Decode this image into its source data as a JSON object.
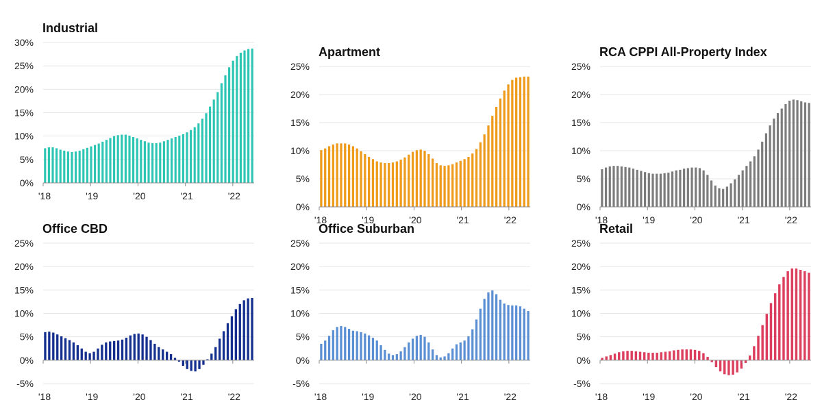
{
  "chart_data": [
    {
      "type": "bar",
      "title": "Industrial",
      "color": "#2cc5b4",
      "ylim": [
        0,
        30
      ],
      "yticks": [
        0,
        5,
        10,
        15,
        20,
        25,
        30
      ],
      "ytick_labels": [
        "0%",
        "5%",
        "10%",
        "15%",
        "20%",
        "25%",
        "30%"
      ],
      "xtick_labels": [
        "'18",
        "'19",
        "'20",
        "'21",
        "'22"
      ],
      "xlabel": "",
      "ylabel": "",
      "values": [
        7.4,
        7.6,
        7.6,
        7.4,
        7.1,
        6.9,
        6.7,
        6.6,
        6.7,
        6.9,
        7.2,
        7.5,
        7.8,
        8.1,
        8.4,
        8.8,
        9.2,
        9.6,
        10.0,
        10.2,
        10.3,
        10.3,
        10.1,
        9.8,
        9.5,
        9.2,
        8.9,
        8.6,
        8.5,
        8.5,
        8.6,
        8.9,
        9.2,
        9.5,
        9.8,
        10.1,
        10.4,
        10.8,
        11.3,
        11.9,
        12.7,
        13.7,
        14.9,
        16.3,
        17.8,
        19.4,
        21.3,
        23.0,
        24.7,
        26.1,
        27.1,
        27.8,
        28.3,
        28.6,
        28.7
      ]
    },
    {
      "type": "bar",
      "title": "Apartment",
      "color": "#ee9a1a",
      "ylim": [
        0,
        25
      ],
      "yticks": [
        0,
        5,
        10,
        15,
        20,
        25
      ],
      "ytick_labels": [
        "0%",
        "5%",
        "10%",
        "15%",
        "20%",
        "25%"
      ],
      "xtick_labels": [
        "'18",
        "'19",
        "'20",
        "'21",
        "'22"
      ],
      "xlabel": "",
      "ylabel": "",
      "values": [
        10.1,
        10.4,
        10.8,
        11.1,
        11.3,
        11.3,
        11.3,
        11.1,
        10.8,
        10.4,
        9.9,
        9.4,
        8.9,
        8.5,
        8.1,
        7.9,
        7.8,
        7.8,
        7.9,
        8.1,
        8.4,
        8.8,
        9.3,
        9.8,
        10.1,
        10.2,
        10.0,
        9.4,
        8.6,
        7.8,
        7.4,
        7.3,
        7.4,
        7.6,
        7.9,
        8.2,
        8.5,
        8.9,
        9.5,
        10.3,
        11.5,
        12.9,
        14.5,
        16.2,
        17.8,
        19.3,
        20.7,
        21.8,
        22.6,
        23.0,
        23.1,
        23.2,
        23.2
      ]
    },
    {
      "type": "bar",
      "title": "RCA CPPI All-Property Index",
      "color": "#7b7b7b",
      "ylim": [
        0,
        25
      ],
      "yticks": [
        0,
        5,
        10,
        15,
        20,
        25
      ],
      "ytick_labels": [
        "0%",
        "5%",
        "10%",
        "15%",
        "20%",
        "25%"
      ],
      "xtick_labels": [
        "'18",
        "'19",
        "'20",
        "'21",
        "'22"
      ],
      "xlabel": "",
      "ylabel": "",
      "values": [
        6.7,
        7.0,
        7.2,
        7.3,
        7.3,
        7.2,
        7.1,
        7.0,
        6.8,
        6.6,
        6.4,
        6.2,
        6.0,
        5.9,
        5.9,
        5.9,
        6.0,
        6.1,
        6.3,
        6.5,
        6.6,
        6.8,
        6.9,
        7.0,
        7.0,
        6.9,
        6.5,
        5.7,
        4.7,
        3.8,
        3.3,
        3.2,
        3.6,
        4.2,
        4.9,
        5.7,
        6.5,
        7.3,
        8.1,
        9.0,
        10.2,
        11.6,
        13.1,
        14.5,
        15.7,
        16.7,
        17.5,
        18.3,
        18.9,
        19.1,
        19.0,
        18.8,
        18.6,
        18.5
      ]
    },
    {
      "type": "bar",
      "title": "Office CBD",
      "color": "#142f8e",
      "ylim": [
        -5,
        25
      ],
      "yticks": [
        -5,
        0,
        5,
        10,
        15,
        20,
        25
      ],
      "ytick_labels": [
        "-5%",
        "0%",
        "5%",
        "10%",
        "15%",
        "20%",
        "25%"
      ],
      "xtick_labels": [
        "'18",
        "'19",
        "'20",
        "'21",
        "'22"
      ],
      "xlabel": "",
      "ylabel": "",
      "values": [
        6.0,
        6.1,
        5.9,
        5.5,
        5.1,
        4.7,
        4.3,
        3.8,
        3.2,
        2.5,
        1.8,
        1.5,
        1.8,
        2.5,
        3.3,
        3.8,
        4.0,
        4.1,
        4.2,
        4.4,
        4.8,
        5.3,
        5.6,
        5.7,
        5.5,
        5.0,
        4.3,
        3.5,
        2.8,
        2.3,
        1.8,
        1.3,
        0.5,
        -0.3,
        -1.2,
        -1.9,
        -2.3,
        -2.4,
        -1.9,
        -1.0,
        0.2,
        1.4,
        2.8,
        4.6,
        6.2,
        7.9,
        9.4,
        10.9,
        12.0,
        12.8,
        13.2,
        13.3
      ]
    },
    {
      "type": "bar",
      "title": "Office Suburban",
      "color": "#5b8fd4",
      "ylim": [
        -5,
        25
      ],
      "yticks": [
        -5,
        0,
        5,
        10,
        15,
        20,
        25
      ],
      "ytick_labels": [
        "-5%",
        "0%",
        "5%",
        "10%",
        "15%",
        "20%",
        "25%"
      ],
      "xtick_labels": [
        "'18",
        "'19",
        "'20",
        "'21",
        "'22"
      ],
      "xlabel": "",
      "ylabel": "",
      "values": [
        3.5,
        4.2,
        5.2,
        6.4,
        7.1,
        7.3,
        7.1,
        6.7,
        6.3,
        6.2,
        6.0,
        5.7,
        5.3,
        4.8,
        4.2,
        3.2,
        2.2,
        1.4,
        1.1,
        1.3,
        1.9,
        2.8,
        3.8,
        4.6,
        5.2,
        5.4,
        5.0,
        3.8,
        2.3,
        1.1,
        0.6,
        0.8,
        1.5,
        2.5,
        3.4,
        3.8,
        4.2,
        5.1,
        6.6,
        8.7,
        11.0,
        13.1,
        14.5,
        14.9,
        14.1,
        12.9,
        12.1,
        11.8,
        11.7,
        11.7,
        11.5,
        11.0,
        10.5
      ]
    },
    {
      "type": "bar",
      "title": "Retail",
      "color": "#dc3f5e",
      "ylim": [
        -5,
        25
      ],
      "yticks": [
        -5,
        0,
        5,
        10,
        15,
        20,
        25
      ],
      "ytick_labels": [
        "-5%",
        "0%",
        "5%",
        "10%",
        "15%",
        "20%",
        "25%"
      ],
      "xtick_labels": [
        "'18",
        "'19",
        "'20",
        "'21",
        "'22"
      ],
      "xlabel": "",
      "ylabel": "",
      "values": [
        0.5,
        0.8,
        1.1,
        1.4,
        1.7,
        1.9,
        2.0,
        2.0,
        1.9,
        1.8,
        1.7,
        1.6,
        1.6,
        1.6,
        1.7,
        1.8,
        1.9,
        2.1,
        2.2,
        2.3,
        2.3,
        2.3,
        2.2,
        2.0,
        1.5,
        0.7,
        -0.4,
        -1.5,
        -2.4,
        -3.0,
        -3.2,
        -3.1,
        -2.6,
        -1.8,
        -0.6,
        1.0,
        3.0,
        5.2,
        7.5,
        9.9,
        12.2,
        14.3,
        16.2,
        17.8,
        19.0,
        19.6,
        19.6,
        19.3,
        19.0,
        18.7
      ]
    }
  ]
}
